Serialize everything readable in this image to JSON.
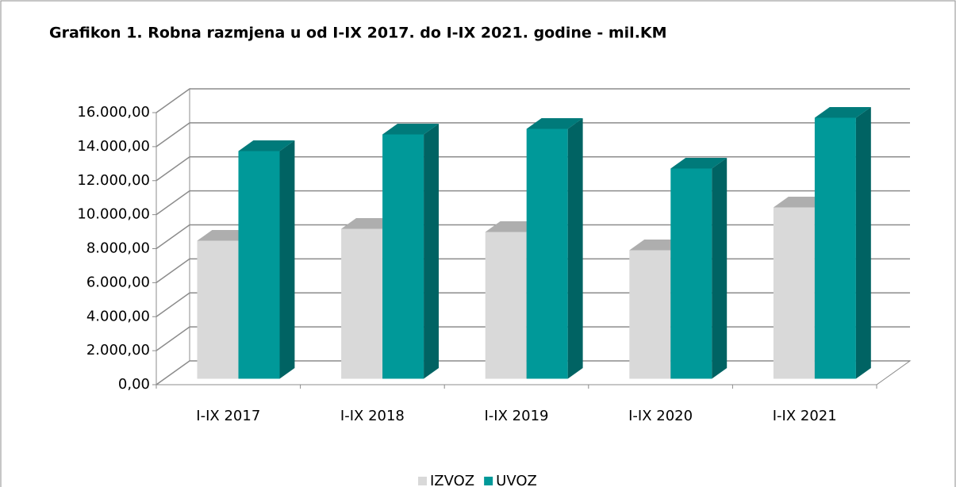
{
  "chart_data": {
    "type": "bar3d",
    "title": "Grafikon 1. Robna razmjena u od I-IX 2017. do I-IX 2021. godine - mil.KM",
    "categories": [
      "I-IX 2017",
      "I-IX 2018",
      "I-IX 2019",
      "I-IX 2020",
      "I-IX 2021"
    ],
    "series": [
      {
        "name": "IZVOZ",
        "color": "#d9d9d9",
        "values": [
          8117,
          8817,
          8630,
          7557,
          10076
        ]
      },
      {
        "name": "UVOZ",
        "color": "#009999",
        "values": [
          13388,
          14368,
          14694,
          12362,
          15347
        ]
      }
    ],
    "ylim": [
      0,
      16000
    ],
    "yticks": [
      {
        "value": 0,
        "label": "0,00"
      },
      {
        "value": 2000,
        "label": "2.000,00"
      },
      {
        "value": 4000,
        "label": "4.000,00"
      },
      {
        "value": 6000,
        "label": "6.000,00"
      },
      {
        "value": 8000,
        "label": "8.000,00"
      },
      {
        "value": 10000,
        "label": "10.000,00"
      },
      {
        "value": 12000,
        "label": "12.000,00"
      },
      {
        "value": 14000,
        "label": "14.000,00"
      },
      {
        "value": 16000,
        "label": "16.000,00"
      }
    ],
    "grid": true,
    "legend": "bottom"
  }
}
